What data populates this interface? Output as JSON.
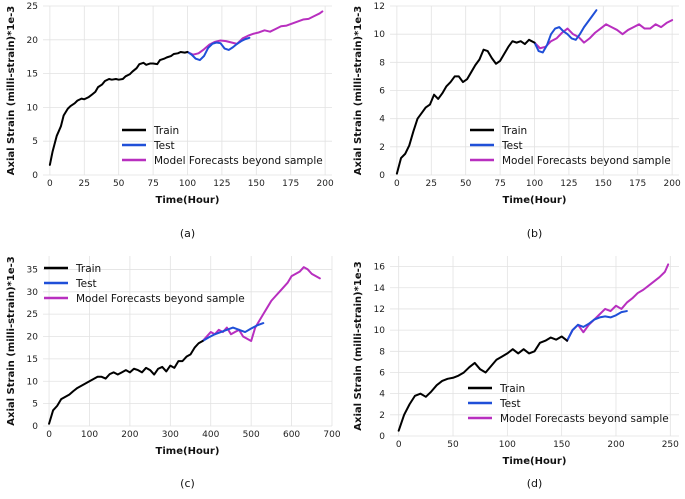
{
  "colors": {
    "train": "#000000",
    "test": "#1f4fd8",
    "forecast": "#b82fbf"
  },
  "chart_data": [
    {
      "type": "line",
      "caption": "(a)",
      "xlabel": "Time(Hour)",
      "ylabel": "Axial Strain (milli-strain)*1e-3",
      "xlim": [
        -5,
        205
      ],
      "ylim": [
        0,
        25
      ],
      "xticks": [
        0,
        25,
        50,
        75,
        100,
        125,
        150,
        175,
        200
      ],
      "yticks": [
        0,
        5,
        10,
        15,
        20,
        25
      ],
      "legend_position": "lower-center",
      "series": [
        {
          "name": "Train",
          "color_key": "train",
          "x": [
            0,
            2,
            5,
            8,
            10,
            13,
            15,
            18,
            20,
            23,
            25,
            28,
            30,
            33,
            35,
            38,
            40,
            43,
            45,
            48,
            50,
            53,
            55,
            58,
            60,
            63,
            65,
            68,
            70,
            73,
            75,
            78,
            80,
            83,
            85,
            88,
            90,
            93,
            95,
            98,
            100
          ],
          "y": [
            1.5,
            3.5,
            5.8,
            7.2,
            8.8,
            9.8,
            10.2,
            10.6,
            11.0,
            11.3,
            11.2,
            11.5,
            11.8,
            12.3,
            13.0,
            13.4,
            13.9,
            14.2,
            14.1,
            14.2,
            14.1,
            14.2,
            14.6,
            14.9,
            15.3,
            15.8,
            16.4,
            16.6,
            16.3,
            16.5,
            16.5,
            16.4,
            17.0,
            17.2,
            17.4,
            17.6,
            17.9,
            18.0,
            18.2,
            18.1,
            18.2
          ]
        },
        {
          "name": "Test",
          "color_key": "test",
          "x": [
            100,
            103,
            106,
            109,
            112,
            115,
            118,
            121,
            124,
            127,
            130,
            133,
            136,
            139,
            142,
            145
          ],
          "y": [
            18.2,
            17.8,
            17.2,
            17.0,
            17.6,
            18.8,
            19.4,
            19.6,
            19.5,
            18.7,
            18.5,
            18.9,
            19.4,
            19.8,
            20.1,
            20.3
          ]
        },
        {
          "name": "Model Forecasts beyond sample",
          "color_key": "forecast",
          "x": [
            100,
            104,
            108,
            112,
            116,
            120,
            124,
            128,
            132,
            136,
            140,
            144,
            148,
            152,
            156,
            160,
            164,
            168,
            172,
            176,
            180,
            184,
            188,
            192,
            196,
            198
          ],
          "y": [
            18.2,
            17.8,
            18.0,
            18.6,
            19.3,
            19.7,
            19.9,
            19.8,
            19.6,
            19.4,
            20.2,
            20.6,
            20.9,
            21.1,
            21.4,
            21.2,
            21.6,
            22.0,
            22.1,
            22.4,
            22.7,
            23.0,
            23.1,
            23.5,
            23.9,
            24.2
          ]
        }
      ]
    },
    {
      "type": "line",
      "caption": "(b)",
      "xlabel": "Time(Hour)",
      "ylabel": "Axial Strain (milli-strain)*1e-3",
      "xlim": [
        -5,
        205
      ],
      "ylim": [
        0,
        12
      ],
      "xticks": [
        0,
        25,
        50,
        75,
        100,
        125,
        150,
        175,
        200
      ],
      "yticks": [
        0,
        2,
        4,
        6,
        8,
        10,
        12
      ],
      "legend_position": "lower-right",
      "series": [
        {
          "name": "Train",
          "color_key": "train",
          "x": [
            0,
            3,
            6,
            9,
            12,
            15,
            18,
            21,
            24,
            27,
            30,
            33,
            36,
            39,
            42,
            45,
            48,
            51,
            54,
            57,
            60,
            63,
            66,
            69,
            72,
            75,
            78,
            81,
            84,
            87,
            90,
            93,
            96,
            100
          ],
          "y": [
            0.1,
            1.2,
            1.5,
            2.1,
            3.1,
            4.0,
            4.4,
            4.8,
            5.0,
            5.7,
            5.4,
            5.8,
            6.3,
            6.6,
            7.0,
            7.0,
            6.6,
            6.8,
            7.3,
            7.8,
            8.2,
            8.9,
            8.8,
            8.3,
            7.9,
            8.1,
            8.6,
            9.1,
            9.5,
            9.4,
            9.5,
            9.3,
            9.6,
            9.4
          ]
        },
        {
          "name": "Test",
          "color_key": "test",
          "x": [
            100,
            103,
            106,
            109,
            112,
            115,
            118,
            121,
            124,
            127,
            130,
            133,
            136,
            139,
            142,
            145
          ],
          "y": [
            9.4,
            8.8,
            8.7,
            9.2,
            10.0,
            10.4,
            10.5,
            10.2,
            10.0,
            9.7,
            9.6,
            10.0,
            10.5,
            10.9,
            11.3,
            11.7
          ]
        },
        {
          "name": "Model Forecasts beyond sample",
          "color_key": "forecast",
          "x": [
            100,
            104,
            108,
            112,
            116,
            120,
            124,
            128,
            132,
            136,
            140,
            144,
            148,
            152,
            156,
            160,
            164,
            168,
            172,
            176,
            180,
            184,
            188,
            192,
            196,
            200
          ],
          "y": [
            9.4,
            9.0,
            9.1,
            9.5,
            9.7,
            10.1,
            10.4,
            10.0,
            9.8,
            9.4,
            9.7,
            10.1,
            10.4,
            10.7,
            10.5,
            10.3,
            10.0,
            10.3,
            10.5,
            10.7,
            10.4,
            10.4,
            10.7,
            10.5,
            10.8,
            11.0
          ]
        }
      ]
    },
    {
      "type": "line",
      "caption": "(c)",
      "xlabel": "Time(Hour)",
      "ylabel": "Axial Strain (milli-strain)*1e-3",
      "xlim": [
        -15,
        700
      ],
      "ylim": [
        0,
        38
      ],
      "xticks": [
        0,
        100,
        200,
        300,
        400,
        500,
        600,
        700
      ],
      "yticks": [
        0,
        5,
        10,
        15,
        20,
        25,
        30,
        35
      ],
      "legend_position": "top-left",
      "series": [
        {
          "name": "Train",
          "color_key": "train",
          "x": [
            0,
            10,
            20,
            30,
            40,
            50,
            60,
            70,
            80,
            90,
            100,
            110,
            120,
            130,
            140,
            150,
            160,
            170,
            180,
            190,
            200,
            210,
            220,
            230,
            240,
            250,
            260,
            270,
            280,
            290,
            300,
            310,
            320,
            330,
            340,
            350,
            360,
            370,
            380
          ],
          "y": [
            0.5,
            3.5,
            4.5,
            6.0,
            6.5,
            7.0,
            7.8,
            8.5,
            9.0,
            9.5,
            10.0,
            10.5,
            11.0,
            11.0,
            10.6,
            11.6,
            12.0,
            11.5,
            12.0,
            12.5,
            12.0,
            12.8,
            12.5,
            12.0,
            13.0,
            12.5,
            11.5,
            12.8,
            13.2,
            12.2,
            13.5,
            13.0,
            14.5,
            14.5,
            15.5,
            16.0,
            17.5,
            18.5,
            19.0
          ]
        },
        {
          "name": "Test",
          "color_key": "test",
          "x": [
            380,
            395,
            410,
            425,
            440,
            455,
            470,
            485,
            500,
            515,
            530
          ],
          "y": [
            19.0,
            19.8,
            20.5,
            21.0,
            21.5,
            22.0,
            21.5,
            21.0,
            21.8,
            22.5,
            23.0
          ]
        },
        {
          "name": "Model Forecasts beyond sample",
          "color_key": "forecast",
          "x": [
            380,
            390,
            400,
            410,
            420,
            430,
            440,
            450,
            460,
            470,
            480,
            490,
            500,
            510,
            520,
            530,
            540,
            550,
            560,
            570,
            580,
            590,
            600,
            610,
            620,
            630,
            640,
            650,
            660,
            670
          ],
          "y": [
            19.0,
            20.0,
            21.0,
            20.5,
            21.5,
            21.0,
            22.0,
            20.5,
            21.0,
            21.5,
            20.0,
            19.5,
            19.0,
            22.0,
            23.5,
            25.0,
            26.5,
            28.0,
            29.0,
            30.0,
            31.0,
            32.0,
            33.5,
            34.0,
            34.5,
            35.5,
            35.0,
            34.0,
            33.5,
            33.0
          ]
        }
      ]
    },
    {
      "type": "line",
      "caption": "(d)",
      "xlabel": "Time(Hour)",
      "ylabel": "Axial Strain (milli-strain)*1e-3",
      "xlim": [
        -8,
        258
      ],
      "ylim": [
        0,
        17
      ],
      "xticks": [
        0,
        50,
        100,
        150,
        200,
        250
      ],
      "yticks": [
        0,
        2,
        4,
        6,
        8,
        10,
        12,
        14,
        16
      ],
      "legend_position": "lower-right",
      "series": [
        {
          "name": "Train",
          "color_key": "train",
          "x": [
            0,
            5,
            10,
            15,
            20,
            25,
            30,
            35,
            40,
            45,
            50,
            55,
            60,
            65,
            70,
            75,
            80,
            85,
            90,
            95,
            100,
            105,
            110,
            115,
            120,
            125,
            130,
            135,
            140,
            145,
            150,
            155
          ],
          "y": [
            0.5,
            2.0,
            3.0,
            3.8,
            4.0,
            3.7,
            4.2,
            4.8,
            5.2,
            5.4,
            5.5,
            5.7,
            6.0,
            6.5,
            6.9,
            6.3,
            6.0,
            6.6,
            7.2,
            7.5,
            7.8,
            8.2,
            7.8,
            8.2,
            7.8,
            8.0,
            8.8,
            9.0,
            9.3,
            9.1,
            9.4,
            9.0
          ]
        },
        {
          "name": "Test",
          "color_key": "test",
          "x": [
            155,
            160,
            165,
            170,
            175,
            180,
            185,
            190,
            195,
            200,
            205,
            210
          ],
          "y": [
            9.0,
            10.0,
            10.5,
            10.3,
            10.6,
            11.0,
            11.2,
            11.3,
            11.2,
            11.4,
            11.7,
            11.8
          ]
        },
        {
          "name": "Model Forecasts beyond sample",
          "color_key": "forecast",
          "x": [
            155,
            160,
            165,
            170,
            175,
            180,
            185,
            190,
            195,
            200,
            205,
            210,
            215,
            220,
            225,
            230,
            235,
            240,
            245,
            248
          ],
          "y": [
            9.0,
            10.0,
            10.5,
            9.8,
            10.5,
            11.0,
            11.5,
            12.0,
            11.8,
            12.3,
            12.0,
            12.6,
            13.0,
            13.5,
            13.8,
            14.2,
            14.6,
            15.0,
            15.5,
            16.2
          ]
        }
      ]
    }
  ]
}
